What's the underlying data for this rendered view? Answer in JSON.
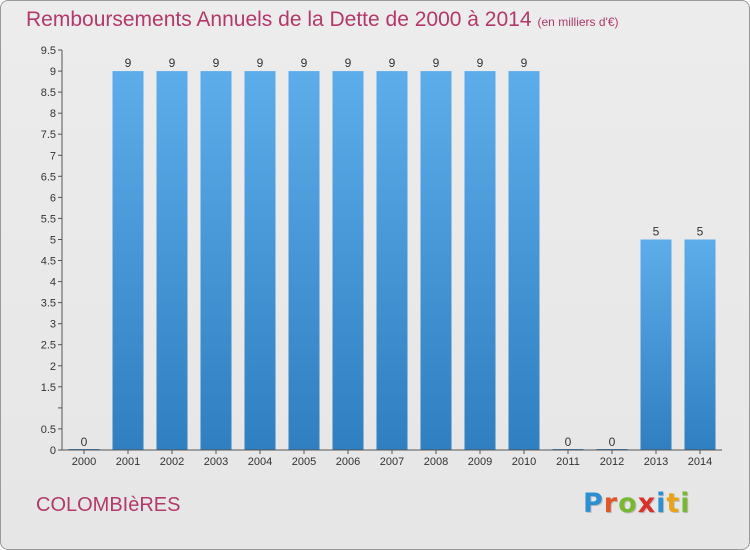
{
  "header": {
    "title": "Remboursements Annuels de la Dette de 2000 à 2014",
    "subtitle": "(en milliers d'€)"
  },
  "footer": {
    "place": "COLOMBIèRES",
    "brand": "Proxiti"
  },
  "colors": {
    "accent_text": "#b5386a",
    "bar_top": "#5dadea",
    "bar_bottom": "#2f7fc1",
    "brand_letters": [
      "#2e8fd0",
      "#e0582a",
      "#7ab834",
      "#d9312d",
      "#2e8fd0",
      "#e7a41b",
      "#7ab834"
    ]
  },
  "chart_data": {
    "type": "bar",
    "title": "Remboursements Annuels de la Dette de 2000 à 2014",
    "subtitle": "(en milliers d'€)",
    "categories": [
      "2000",
      "2001",
      "2002",
      "2003",
      "2004",
      "2005",
      "2006",
      "2007",
      "2008",
      "2009",
      "2010",
      "2011",
      "2012",
      "2013",
      "2014"
    ],
    "values": [
      0,
      9,
      9,
      9,
      9,
      9,
      9,
      9,
      9,
      9,
      9,
      0,
      0,
      5,
      5
    ],
    "data_labels": [
      "0",
      "9",
      "9",
      "9",
      "9",
      "9",
      "9",
      "9",
      "9",
      "9",
      "9",
      "0",
      "0",
      "5",
      "5"
    ],
    "y_ticks": [
      0,
      0.5,
      1,
      1.5,
      2,
      2.5,
      3,
      3.5,
      4,
      4.5,
      5,
      5.5,
      6,
      6.5,
      7,
      7.5,
      8,
      8.5,
      9,
      9.5
    ],
    "y_tick_labels": [
      "0",
      "0.5",
      "",
      "1.5",
      "2",
      "2.5",
      "3",
      "3.5",
      "4",
      "4.5",
      "5",
      "5.5",
      "6",
      "6.5",
      "7",
      "7.5",
      "8",
      "8.5",
      "9",
      "9.5"
    ],
    "ylim": [
      0,
      9.5
    ],
    "grid": false,
    "legend": "none"
  }
}
